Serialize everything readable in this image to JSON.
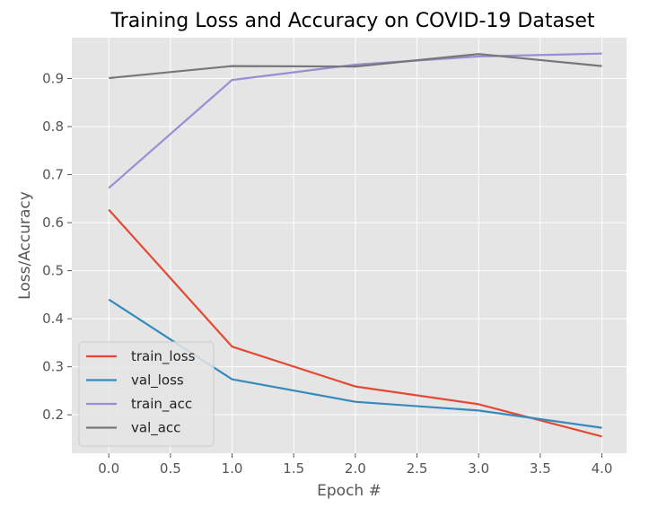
{
  "chart_data": {
    "type": "line",
    "title": "Training Loss and Accuracy on COVID-19 Dataset",
    "xlabel": "Epoch #",
    "ylabel": "Loss/Accuracy",
    "xlim": [
      -0.3,
      4.2
    ],
    "ylim": [
      0.12,
      0.985
    ],
    "x": [
      0,
      1,
      2,
      3,
      4
    ],
    "x_ticks": [
      0.0,
      0.5,
      1.0,
      1.5,
      2.0,
      2.5,
      3.0,
      3.5,
      4.0
    ],
    "x_tick_labels": [
      "0.0",
      "0.5",
      "1.0",
      "1.5",
      "2.0",
      "2.5",
      "3.0",
      "3.5",
      "4.0"
    ],
    "y_ticks": [
      0.2,
      0.3,
      0.4,
      0.5,
      0.6,
      0.7,
      0.8,
      0.9
    ],
    "y_tick_labels": [
      "0.2",
      "0.3",
      "0.4",
      "0.5",
      "0.6",
      "0.7",
      "0.8",
      "0.9"
    ],
    "grid": true,
    "legend_position": "lower-left",
    "style": {
      "plot_background": "#e5e5e5",
      "grid_color": "#ffffff"
    },
    "series": [
      {
        "name": "train_loss",
        "color": "#e24a33",
        "values": [
          0.627,
          0.342,
          0.259,
          0.222,
          0.155
        ]
      },
      {
        "name": "val_loss",
        "color": "#348abd",
        "values": [
          0.44,
          0.274,
          0.227,
          0.209,
          0.173
        ]
      },
      {
        "name": "train_acc",
        "color": "#988ed5",
        "values": [
          0.672,
          0.897,
          0.929,
          0.946,
          0.952
        ]
      },
      {
        "name": "val_acc",
        "color": "#777777",
        "values": [
          0.901,
          0.926,
          0.925,
          0.951,
          0.926
        ]
      }
    ]
  }
}
